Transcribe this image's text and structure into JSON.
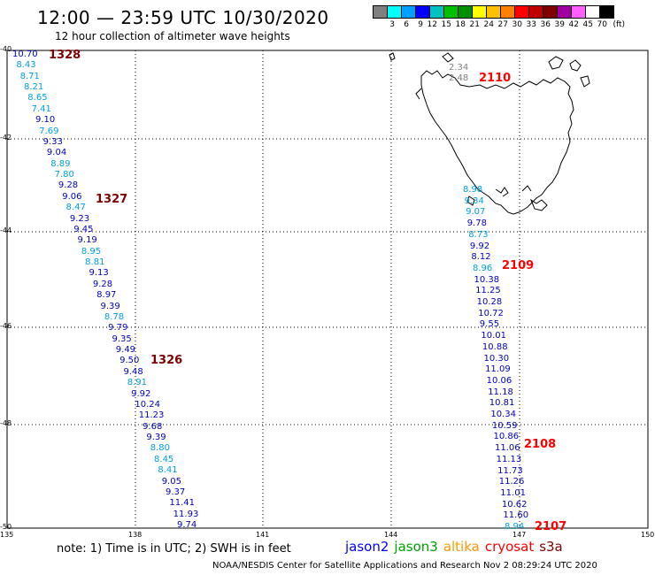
{
  "header": {
    "title": "12:00 — 23:59 UTC 10/30/2020",
    "subtitle": "12 hour collection of altimeter wave heights"
  },
  "color_legend": {
    "labels": [
      "3",
      "6",
      "9",
      "12",
      "15",
      "18",
      "21",
      "24",
      "27",
      "30",
      "33",
      "36",
      "39",
      "42",
      "45",
      "70"
    ],
    "unit": "(ft)",
    "colors": [
      "#808080",
      "#00ffff",
      "#00a0ff",
      "#0000ff",
      "#00c0c0",
      "#00c000",
      "#009000",
      "#ffff00",
      "#ffc000",
      "#ff8000",
      "#ff0000",
      "#c00000",
      "#800000",
      "#a000a0",
      "#ff60ff",
      "#ffffff",
      "#000000"
    ]
  },
  "axes": {
    "latitudes": [
      "-40",
      "-42",
      "-44",
      "-46",
      "-48",
      "-50"
    ],
    "longitudes": [
      "135",
      "138",
      "141",
      "144",
      "147",
      "150"
    ]
  },
  "passes": [
    {
      "id": "1328",
      "color": "#800000",
      "sat": "jason2"
    },
    {
      "id": "1327",
      "color": "#800000",
      "sat": "jason2"
    },
    {
      "id": "1326",
      "color": "#800000",
      "sat": "jason2"
    },
    {
      "id": "2110",
      "color": "#ff0000",
      "sat": "jason3"
    },
    {
      "id": "2109",
      "color": "#ff0000",
      "sat": "jason3"
    },
    {
      "id": "2108",
      "color": "#ff0000",
      "sat": "jason3"
    },
    {
      "id": "2107",
      "color": "#ff0000",
      "sat": "jason3"
    }
  ],
  "track_west": {
    "values": [
      "10.70",
      "8.43",
      "8.71",
      "8.21",
      "8.65",
      "7.41",
      "9.10",
      "7.69",
      "9.33",
      "9.04",
      "8.89",
      "7.80",
      "9.28",
      "9.06",
      "8.47",
      "9.23",
      "9.45",
      "9.19",
      "8.95",
      "8.81",
      "9.13",
      "9.28",
      "8.97",
      "9.39",
      "8.78",
      "9.79",
      "9.35",
      "9.49",
      "9.50",
      "9.48",
      "8.91",
      "9.92",
      "10.24",
      "11.23",
      "9.68",
      "9.39",
      "8.80",
      "8.45",
      "8.41",
      "9.05",
      "9.37",
      "11.41",
      "11.93",
      "9.74"
    ],
    "colors": [
      "blue",
      "cyan",
      "cyan",
      "cyan",
      "cyan",
      "cyan",
      "blue",
      "cyan",
      "blue",
      "blue",
      "cyan",
      "cyan",
      "blue",
      "blue",
      "cyan",
      "blue",
      "blue",
      "blue",
      "cyan",
      "cyan",
      "blue",
      "blue",
      "blue",
      "blue",
      "cyan",
      "blue",
      "blue",
      "blue",
      "blue",
      "blue",
      "cyan",
      "blue",
      "blue",
      "blue",
      "blue",
      "blue",
      "cyan",
      "cyan",
      "cyan",
      "blue",
      "blue",
      "blue",
      "blue",
      "blue"
    ]
  },
  "track_east_top": {
    "values": [
      "2.34",
      "2.48"
    ]
  },
  "track_east": {
    "values": [
      "8.98",
      "9.34",
      "9.07",
      "9.78",
      "8.73",
      "9.92",
      "8.12",
      "8.96",
      "10.38",
      "11.25",
      "10.28",
      "10.72",
      "9.55",
      "10.01",
      "10.88",
      "10.30",
      "11.09",
      "10.06",
      "11.18",
      "10.81",
      "10.34",
      "10.59",
      "10.86",
      "11.06",
      "11.13",
      "11.73",
      "11.26",
      "11.01",
      "10.62",
      "11.60",
      "8.94"
    ],
    "colors": [
      "cyan",
      "cyan",
      "cyan",
      "blue",
      "cyan",
      "blue",
      "blue",
      "cyan",
      "blue",
      "blue",
      "blue",
      "blue",
      "blue",
      "blue",
      "blue",
      "blue",
      "blue",
      "blue",
      "blue",
      "blue",
      "blue",
      "blue",
      "blue",
      "blue",
      "blue",
      "blue",
      "blue",
      "blue",
      "blue",
      "blue",
      "cyan"
    ]
  },
  "footer": {
    "note": "note:  1) Time is in UTC; 2) SWH is in feet",
    "satellites": [
      {
        "name": "jason2",
        "color": "#0000ff"
      },
      {
        "name": "jason3",
        "color": "#00a000"
      },
      {
        "name": "altika",
        "color": "#ff9900"
      },
      {
        "name": "cryosat",
        "color": "#ff0000"
      },
      {
        "name": "s3a",
        "color": "#800000"
      }
    ],
    "credit": "NOAA/NESDIS Center for Satellite Applications and Research    Nov  2 08:29:24 UTC 2020"
  }
}
